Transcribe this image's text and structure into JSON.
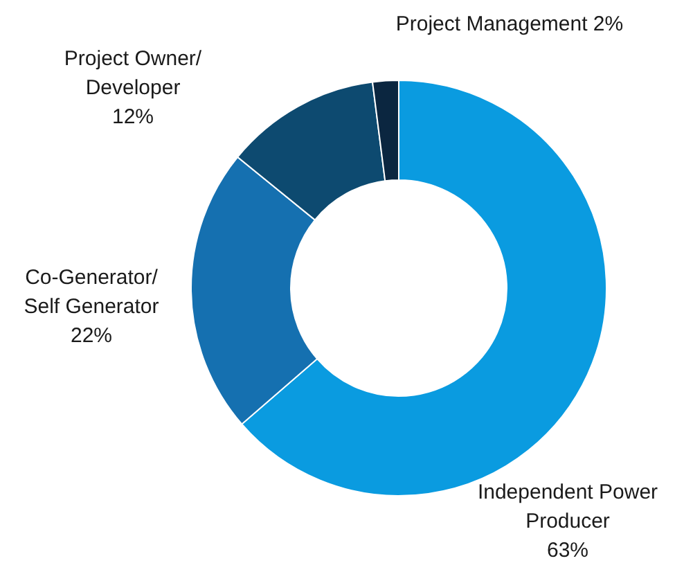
{
  "chart_data": {
    "type": "donut",
    "categories": [
      "Independent Power Producer",
      "Co-Generator/Self Generator",
      "Project Owner/Developer",
      "Project Management"
    ],
    "values": [
      63,
      22,
      12,
      2
    ],
    "colors": [
      "#0a9be0",
      "#1570b0",
      "#0d4a70",
      "#0b2640"
    ],
    "value_labels": [
      "63%",
      "22%",
      "12%",
      "2%"
    ]
  }
}
